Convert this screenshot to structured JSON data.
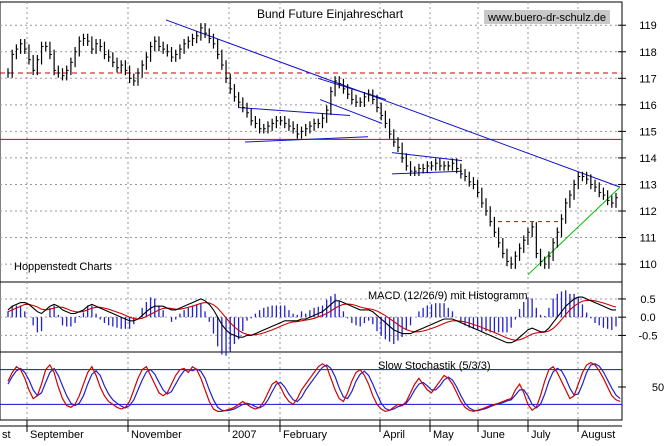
{
  "chart_data": [
    {
      "type": "line",
      "title": "Bund Future Einjahreschart",
      "source": "www.buero-dr-schulz.de",
      "note": "Hoppenstedt Charts",
      "price_ylim": [
        109.4,
        119.8
      ],
      "y_ticks": [
        "110",
        "111",
        "112",
        "113",
        "114",
        "115",
        "116",
        "117",
        "118",
        "119"
      ],
      "x_labels": [
        "st",
        "September",
        "November",
        "2007",
        "February",
        "April",
        "May",
        "June",
        "July",
        "August"
      ],
      "grid": true,
      "series": [
        {
          "values": [
            117.2,
            117.9,
            118.1,
            118.3,
            118.1,
            117.7,
            117.3,
            117.7,
            118.2,
            118.2,
            117.9,
            117.3,
            117.2,
            117.1,
            117.3,
            117.6,
            118.0,
            118.4,
            118.5,
            118.4,
            118.1,
            118.3,
            118.2,
            117.9,
            117.8,
            117.6,
            117.4,
            117.5,
            117.3,
            117.0,
            116.9,
            117.2,
            117.5,
            117.8,
            118.2,
            118.4,
            118.2,
            118.1,
            118.0,
            117.8,
            117.9,
            118.1,
            118.3,
            118.4,
            118.5,
            118.6,
            118.9,
            118.7,
            118.5,
            118.3,
            117.9,
            117.5,
            117.0,
            116.6,
            116.3,
            116.1,
            115.9,
            115.7,
            115.4,
            115.3,
            115.1,
            115.1,
            115.2,
            115.3,
            115.4,
            115.4,
            115.3,
            115.2,
            115.1,
            114.9,
            115.0,
            115.1,
            115.2,
            115.3,
            115.3,
            115.5,
            115.8,
            116.5,
            116.9,
            116.8,
            116.6,
            116.4,
            116.2,
            116.1,
            116.1,
            116.3,
            116.4,
            116.2,
            115.9,
            115.6,
            115.3,
            114.9,
            114.6,
            114.4,
            114.0,
            113.7,
            113.5,
            113.5,
            113.6,
            113.6,
            113.7,
            113.7,
            113.8,
            113.7,
            113.7,
            113.7,
            113.8,
            113.6,
            113.4,
            113.3,
            113.1,
            113.0,
            112.7,
            112.3,
            112.0,
            111.6,
            111.2,
            110.8,
            110.4,
            110.1,
            110.0,
            110.3,
            110.6,
            110.9,
            111.2,
            111.4,
            110.4,
            110.1,
            110.0,
            110.3,
            110.8,
            111.2,
            111.7,
            112.3,
            112.6,
            113.0,
            113.3,
            113.3,
            113.2,
            113.0,
            112.9,
            112.7,
            112.6,
            112.4,
            112.3,
            112.5
          ]
        }
      ],
      "support_levels": [
        117.2,
        114.7
      ],
      "panels": [
        {
          "name": "MACD (12/26/9) mit Histogramm",
          "y_ticks": [
            "0.5",
            "0.0",
            "-0.5"
          ],
          "ylim": [
            -0.9,
            0.8
          ],
          "macd": [
            0.2,
            0.3,
            0.35,
            0.4,
            0.4,
            0.35,
            0.25,
            0.15,
            0.1,
            0.2,
            0.3,
            0.35,
            0.3,
            0.2,
            0.15,
            0.1,
            0.1,
            0.15,
            0.2,
            0.3,
            0.35,
            0.3,
            0.25,
            0.2,
            0.15,
            0.1,
            0.05,
            0.0,
            -0.05,
            -0.1,
            -0.1,
            -0.05,
            0.05,
            0.15,
            0.25,
            0.3,
            0.3,
            0.3,
            0.25,
            0.2,
            0.2,
            0.25,
            0.3,
            0.35,
            0.4,
            0.45,
            0.5,
            0.45,
            0.35,
            0.2,
            0.0,
            -0.2,
            -0.35,
            -0.45,
            -0.5,
            -0.55,
            -0.55,
            -0.5,
            -0.5,
            -0.45,
            -0.4,
            -0.35,
            -0.3,
            -0.25,
            -0.2,
            -0.15,
            -0.1,
            -0.1,
            -0.1,
            -0.1,
            -0.05,
            -0.05,
            0.0,
            0.05,
            0.1,
            0.15,
            0.25,
            0.35,
            0.45,
            0.45,
            0.4,
            0.35,
            0.3,
            0.25,
            0.2,
            0.2,
            0.2,
            0.15,
            0.05,
            -0.05,
            -0.15,
            -0.25,
            -0.35,
            -0.4,
            -0.45,
            -0.45,
            -0.45,
            -0.4,
            -0.35,
            -0.3,
            -0.25,
            -0.2,
            -0.15,
            -0.1,
            -0.05,
            -0.05,
            -0.05,
            -0.1,
            -0.15,
            -0.2,
            -0.25,
            -0.3,
            -0.35,
            -0.4,
            -0.45,
            -0.5,
            -0.55,
            -0.6,
            -0.65,
            -0.7,
            -0.7,
            -0.65,
            -0.55,
            -0.45,
            -0.35,
            -0.3,
            -0.35,
            -0.4,
            -0.4,
            -0.3,
            -0.15,
            0.0,
            0.15,
            0.3,
            0.4,
            0.5,
            0.55,
            0.55,
            0.5,
            0.45,
            0.4,
            0.35,
            0.3,
            0.25,
            0.2,
            0.2
          ],
          "signal": [
            0.15,
            0.2,
            0.25,
            0.3,
            0.35,
            0.35,
            0.32,
            0.28,
            0.22,
            0.2,
            0.22,
            0.25,
            0.28,
            0.27,
            0.23,
            0.18,
            0.15,
            0.14,
            0.16,
            0.2,
            0.25,
            0.27,
            0.27,
            0.25,
            0.22,
            0.18,
            0.14,
            0.1,
            0.05,
            0.0,
            -0.04,
            -0.05,
            -0.03,
            0.02,
            0.08,
            0.14,
            0.2,
            0.24,
            0.25,
            0.24,
            0.22,
            0.22,
            0.24,
            0.27,
            0.3,
            0.34,
            0.38,
            0.4,
            0.39,
            0.34,
            0.25,
            0.12,
            -0.02,
            -0.15,
            -0.27,
            -0.36,
            -0.43,
            -0.47,
            -0.49,
            -0.48,
            -0.46,
            -0.43,
            -0.39,
            -0.35,
            -0.3,
            -0.25,
            -0.2,
            -0.16,
            -0.13,
            -0.12,
            -0.1,
            -0.08,
            -0.06,
            -0.03,
            0.01,
            0.05,
            0.1,
            0.17,
            0.25,
            0.31,
            0.35,
            0.36,
            0.35,
            0.32,
            0.28,
            0.25,
            0.23,
            0.21,
            0.17,
            0.11,
            0.04,
            -0.04,
            -0.12,
            -0.2,
            -0.28,
            -0.34,
            -0.38,
            -0.4,
            -0.4,
            -0.38,
            -0.35,
            -0.31,
            -0.27,
            -0.22,
            -0.17,
            -0.13,
            -0.1,
            -0.1,
            -0.11,
            -0.13,
            -0.16,
            -0.2,
            -0.24,
            -0.28,
            -0.33,
            -0.37,
            -0.42,
            -0.47,
            -0.52,
            -0.57,
            -0.61,
            -0.63,
            -0.62,
            -0.58,
            -0.52,
            -0.46,
            -0.43,
            -0.42,
            -0.41,
            -0.38,
            -0.31,
            -0.2,
            -0.07,
            0.07,
            0.2,
            0.3,
            0.38,
            0.44,
            0.46,
            0.46,
            0.45,
            0.42,
            0.39,
            0.35,
            0.31,
            0.28
          ]
        },
        {
          "name": "Slow Stochastik (5/3/3)",
          "y_ticks": [
            "50"
          ],
          "ylim": [
            0,
            100
          ],
          "k": [
            60,
            75,
            85,
            80,
            65,
            45,
            30,
            35,
            55,
            80,
            88,
            75,
            50,
            30,
            18,
            15,
            20,
            35,
            55,
            75,
            85,
            70,
            50,
            35,
            25,
            20,
            15,
            12,
            15,
            25,
            45,
            65,
            80,
            85,
            70,
            55,
            40,
            35,
            40,
            55,
            70,
            80,
            82,
            75,
            85,
            80,
            65,
            45,
            25,
            12,
            8,
            8,
            10,
            12,
            15,
            20,
            25,
            20,
            15,
            12,
            15,
            25,
            40,
            55,
            60,
            50,
            35,
            25,
            20,
            30,
            45,
            55,
            65,
            75,
            85,
            90,
            85,
            65,
            45,
            30,
            25,
            40,
            60,
            75,
            80,
            70,
            55,
            35,
            20,
            12,
            8,
            10,
            15,
            20,
            18,
            25,
            40,
            55,
            65,
            55,
            45,
            40,
            50,
            60,
            70,
            65,
            55,
            40,
            25,
            15,
            10,
            8,
            10,
            12,
            15,
            18,
            20,
            22,
            25,
            28,
            30,
            45,
            55,
            40,
            20,
            10,
            15,
            35,
            60,
            80,
            85,
            75,
            60,
            45,
            30,
            35,
            55,
            75,
            88,
            92,
            88,
            78,
            65,
            50,
            35,
            28,
            25
          ],
          "d": [
            55,
            68,
            78,
            82,
            75,
            62,
            45,
            35,
            40,
            58,
            75,
            82,
            70,
            52,
            35,
            22,
            18,
            22,
            35,
            55,
            72,
            78,
            70,
            52,
            38,
            28,
            22,
            17,
            14,
            18,
            28,
            45,
            62,
            76,
            80,
            72,
            58,
            45,
            38,
            42,
            55,
            68,
            78,
            80,
            78,
            81,
            77,
            65,
            45,
            28,
            15,
            10,
            9,
            10,
            12,
            16,
            20,
            22,
            20,
            16,
            14,
            18,
            28,
            42,
            55,
            58,
            50,
            38,
            28,
            25,
            32,
            45,
            55,
            65,
            75,
            84,
            88,
            82,
            68,
            48,
            33,
            30,
            42,
            60,
            72,
            77,
            70,
            55,
            38,
            22,
            13,
            10,
            12,
            16,
            18,
            22,
            32,
            45,
            55,
            58,
            52,
            45,
            45,
            52,
            62,
            67,
            62,
            50,
            35,
            22,
            14,
            10,
            9,
            11,
            13,
            16,
            19,
            21,
            23,
            26,
            28,
            36,
            45,
            45,
            35,
            20,
            14,
            20,
            38,
            60,
            76,
            82,
            78,
            65,
            48,
            36,
            38,
            55,
            75,
            88,
            90,
            86,
            76,
            62,
            48,
            36,
            30
          ]
        }
      ]
    }
  ]
}
